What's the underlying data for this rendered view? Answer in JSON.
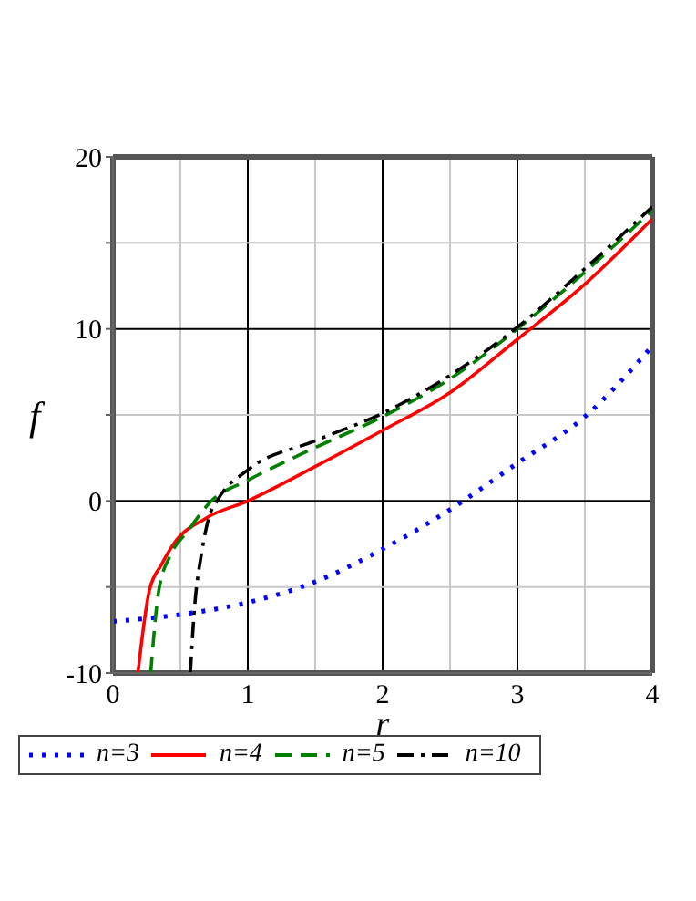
{
  "chart_data": {
    "type": "line",
    "xlabel": "r",
    "ylabel": "f",
    "xlim": [
      0,
      4
    ],
    "ylim": [
      -10,
      20
    ],
    "xticks": [
      0,
      {
        "value": 0.5,
        "label": null
      },
      1,
      {
        "value": 1.5,
        "label": null
      },
      2,
      {
        "value": 2.5,
        "label": null
      },
      3,
      {
        "value": 3.5,
        "label": null
      },
      4
    ],
    "yticks": [
      -10,
      {
        "value": -5,
        "label": null
      },
      0,
      {
        "value": 5,
        "label": null
      },
      10,
      {
        "value": 15,
        "label": null
      },
      20
    ],
    "grid": true,
    "legend": "bottom",
    "marker": "none",
    "series": [
      {
        "name": "n=3",
        "color": "#0000ff",
        "line_style": "dotted",
        "x": [
          0,
          0.5,
          1,
          1.5,
          2,
          2.5,
          3,
          3.5,
          4
        ],
        "values": [
          -7,
          -6.6,
          -5.9,
          -4.7,
          -2.8,
          -0.5,
          2.2,
          4.9,
          9.0
        ]
      },
      {
        "name": "n=4",
        "color": "#ff0000",
        "line_style": "solid",
        "x": [
          0.185,
          0.27,
          0.36,
          0.45,
          0.69,
          1,
          1.5,
          2,
          2.5,
          3,
          3.5,
          4
        ],
        "values": [
          -10,
          -5.2,
          -3.7,
          -2.5,
          -1,
          0,
          2.0,
          4.1,
          6.3,
          9.4,
          12.6,
          16.4
        ]
      },
      {
        "name": "n=5",
        "color": "#008000",
        "line_style": "dashed",
        "x": [
          0.28,
          0.34,
          0.43,
          0.55,
          0.73,
          1,
          1.5,
          2,
          2.5,
          3,
          3.5,
          4
        ],
        "values": [
          -10,
          -5.2,
          -3.1,
          -1.8,
          0,
          1.2,
          3.1,
          4.9,
          7.1,
          10,
          13.3,
          16.9
        ]
      },
      {
        "name": "n=10",
        "color": "#000000",
        "line_style": "dashdot",
        "x": [
          0.574,
          0.6,
          0.66,
          0.71,
          0.78,
          1,
          1.5,
          2,
          2.5,
          3,
          3.5,
          4
        ],
        "values": [
          -10,
          -6.7,
          -2.9,
          -1,
          0.1,
          1.8,
          3.5,
          5.1,
          7.3,
          10.1,
          13.5,
          17.1
        ]
      }
    ]
  }
}
